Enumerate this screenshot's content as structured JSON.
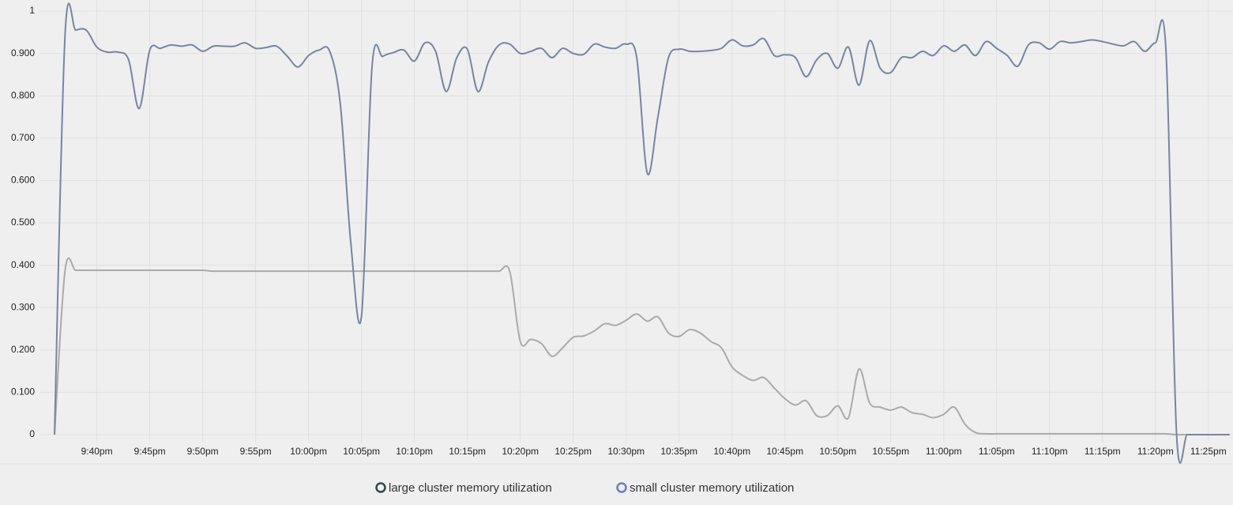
{
  "chart_data": {
    "type": "line",
    "x": [
      "9:36pm",
      "9:37pm",
      "9:38pm",
      "9:39pm",
      "9:40pm",
      "9:41pm",
      "9:42pm",
      "9:43pm",
      "9:44pm",
      "9:45pm",
      "9:46pm",
      "9:47pm",
      "9:48pm",
      "9:49pm",
      "9:50pm",
      "9:51pm",
      "9:52pm",
      "9:53pm",
      "9:54pm",
      "9:55pm",
      "9:56pm",
      "9:57pm",
      "9:58pm",
      "9:59pm",
      "10:00pm",
      "10:01pm",
      "10:02pm",
      "10:03pm",
      "10:04pm",
      "10:05pm",
      "10:06pm",
      "10:07pm",
      "10:08pm",
      "10:09pm",
      "10:10pm",
      "10:11pm",
      "10:12pm",
      "10:13pm",
      "10:14pm",
      "10:15pm",
      "10:16pm",
      "10:17pm",
      "10:18pm",
      "10:19pm",
      "10:20pm",
      "10:21pm",
      "10:22pm",
      "10:23pm",
      "10:24pm",
      "10:25pm",
      "10:26pm",
      "10:27pm",
      "10:28pm",
      "10:29pm",
      "10:30pm",
      "10:31pm",
      "10:32pm",
      "10:33pm",
      "10:34pm",
      "10:35pm",
      "10:36pm",
      "10:37pm",
      "10:38pm",
      "10:39pm",
      "10:40pm",
      "10:41pm",
      "10:42pm",
      "10:43pm",
      "10:44pm",
      "10:45pm",
      "10:46pm",
      "10:47pm",
      "10:48pm",
      "10:49pm",
      "10:50pm",
      "10:51pm",
      "10:52pm",
      "10:53pm",
      "10:54pm",
      "10:55pm",
      "10:56pm",
      "10:57pm",
      "10:58pm",
      "10:59pm",
      "11:00pm",
      "11:01pm",
      "11:02pm",
      "11:03pm",
      "11:04pm",
      "11:05pm",
      "11:06pm",
      "11:07pm",
      "11:08pm",
      "11:09pm",
      "11:10pm",
      "11:11pm",
      "11:12pm",
      "11:13pm",
      "11:14pm",
      "11:15pm",
      "11:16pm",
      "11:17pm",
      "11:18pm",
      "11:19pm",
      "11:20pm",
      "11:21pm",
      "11:22pm",
      "11:23pm",
      "11:24pm",
      "11:25pm",
      "11:26pm",
      "11:27pm"
    ],
    "series": [
      {
        "name": "large cluster memory utilization",
        "color": "#aaaaaa",
        "legend_color": "#2f4a48",
        "values": [
          0,
          0.388,
          0.388,
          0.388,
          0.388,
          0.388,
          0.388,
          0.388,
          0.388,
          0.388,
          0.388,
          0.388,
          0.388,
          0.388,
          0.388,
          0.386,
          0.386,
          0.386,
          0.386,
          0.386,
          0.386,
          0.386,
          0.386,
          0.386,
          0.386,
          0.386,
          0.386,
          0.386,
          0.386,
          0.386,
          0.386,
          0.386,
          0.386,
          0.386,
          0.386,
          0.386,
          0.386,
          0.386,
          0.386,
          0.386,
          0.386,
          0.386,
          0.386,
          0.386,
          0.22,
          0.225,
          0.215,
          0.185,
          0.205,
          0.23,
          0.233,
          0.245,
          0.262,
          0.258,
          0.27,
          0.285,
          0.268,
          0.278,
          0.24,
          0.232,
          0.248,
          0.24,
          0.22,
          0.205,
          0.16,
          0.14,
          0.128,
          0.135,
          0.11,
          0.085,
          0.07,
          0.08,
          0.045,
          0.045,
          0.068,
          0.04,
          0.155,
          0.075,
          0.065,
          0.058,
          0.065,
          0.052,
          0.048,
          0.04,
          0.048,
          0.065,
          0.025,
          0.005,
          0.002,
          0.002,
          0.002,
          0.002,
          0.002,
          0.002,
          0.002,
          0.002,
          0.002,
          0.002,
          0.002,
          0.002,
          0.002,
          0.002,
          0.002,
          0.002,
          0.002,
          0.002,
          0,
          0,
          0,
          0,
          0,
          0
        ]
      },
      {
        "name": "small cluster memory utilization",
        "color": "#7884a3",
        "legend_color": "#6b7fb5",
        "values": [
          0,
          0.945,
          0.955,
          0.955,
          0.915,
          0.903,
          0.903,
          0.885,
          0.77,
          0.908,
          0.912,
          0.92,
          0.917,
          0.92,
          0.905,
          0.917,
          0.917,
          0.917,
          0.925,
          0.912,
          0.914,
          0.917,
          0.893,
          0.868,
          0.895,
          0.908,
          0.905,
          0.78,
          0.45,
          0.28,
          0.87,
          0.893,
          0.902,
          0.908,
          0.882,
          0.925,
          0.905,
          0.81,
          0.89,
          0.91,
          0.81,
          0.88,
          0.92,
          0.922,
          0.9,
          0.905,
          0.912,
          0.89,
          0.912,
          0.9,
          0.898,
          0.922,
          0.915,
          0.912,
          0.922,
          0.89,
          0.617,
          0.75,
          0.89,
          0.91,
          0.905,
          0.905,
          0.907,
          0.912,
          0.932,
          0.918,
          0.92,
          0.935,
          0.895,
          0.897,
          0.89,
          0.845,
          0.885,
          0.9,
          0.865,
          0.915,
          0.825,
          0.93,
          0.865,
          0.855,
          0.89,
          0.89,
          0.905,
          0.895,
          0.918,
          0.905,
          0.92,
          0.895,
          0.928,
          0.912,
          0.895,
          0.87,
          0.92,
          0.925,
          0.91,
          0.928,
          0.925,
          0.928,
          0.932,
          0.928,
          0.922,
          0.918,
          0.928,
          0.905,
          0.925,
          0.905,
          0,
          0,
          0,
          0,
          0,
          0
        ]
      }
    ],
    "xlim": [
      "9:35pm",
      "11:27pm"
    ],
    "xticks": [
      "9:40pm",
      "9:45pm",
      "9:50pm",
      "9:55pm",
      "10:00pm",
      "10:05pm",
      "10:10pm",
      "10:15pm",
      "10:20pm",
      "10:25pm",
      "10:30pm",
      "10:35pm",
      "10:40pm",
      "10:45pm",
      "10:50pm",
      "10:55pm",
      "11:00pm",
      "11:05pm",
      "11:10pm",
      "11:15pm",
      "11:20pm",
      "11:25pm"
    ],
    "ylim": [
      0,
      1
    ],
    "yticks": [
      0,
      {
        "value": 0.1,
        "label": "0.100"
      },
      {
        "value": 0.2,
        "label": "0.200"
      },
      {
        "value": 0.3,
        "label": "0.300"
      },
      {
        "value": 0.4,
        "label": "0.400"
      },
      {
        "value": 0.5,
        "label": "0.500"
      },
      {
        "value": 0.6,
        "label": "0.600"
      },
      {
        "value": 0.7,
        "label": "0.700"
      },
      {
        "value": 0.8,
        "label": "0.800"
      },
      {
        "value": 0.9,
        "label": "0.900"
      },
      1
    ],
    "grid": true
  }
}
